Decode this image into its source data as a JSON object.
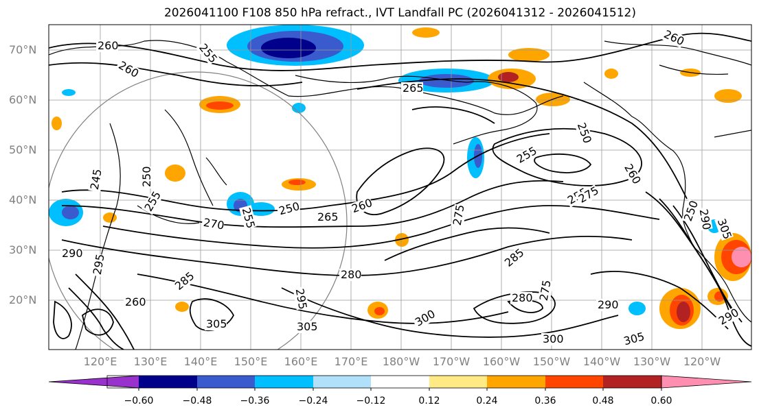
{
  "title": "2026041100 F108 850 hPa refract., IVT Landfall PC (2026041312 - 2026041512)",
  "lat_labels": [
    "70°N",
    "60°N",
    "50°N",
    "40°N",
    "30°N",
    "20°N"
  ],
  "lon_labels": [
    "120°E",
    "130°E",
    "140°E",
    "150°E",
    "160°E",
    "170°E",
    "180°W",
    "170°W",
    "160°W",
    "150°W",
    "140°W",
    "130°W",
    "120°W"
  ],
  "contour_labels": [
    "260",
    "260",
    "255",
    "265",
    "260",
    "250",
    "255",
    "250",
    "260",
    "255",
    "275",
    "275",
    "260",
    "250",
    "265",
    "270",
    "255",
    "250",
    "245",
    "255",
    "290",
    "295",
    "285",
    "260",
    "280",
    "285",
    "300",
    "290",
    "305",
    "300",
    "305",
    "305",
    "280",
    "275",
    "290",
    "305",
    "290",
    "295"
  ],
  "colorbar": {
    "ticks": [
      "−0.60",
      "−0.48",
      "−0.36",
      "−0.24",
      "−0.12",
      "0.12",
      "0.24",
      "0.36",
      "0.48",
      "0.60"
    ],
    "colors": [
      "#9932cc",
      "#00008b",
      "#3a5bcd",
      "#00bfff",
      "#b0e0fa",
      "#ffffff",
      "#ffea85",
      "#ffa500",
      "#ff4500",
      "#b22222",
      "#ff8fb1"
    ]
  }
}
